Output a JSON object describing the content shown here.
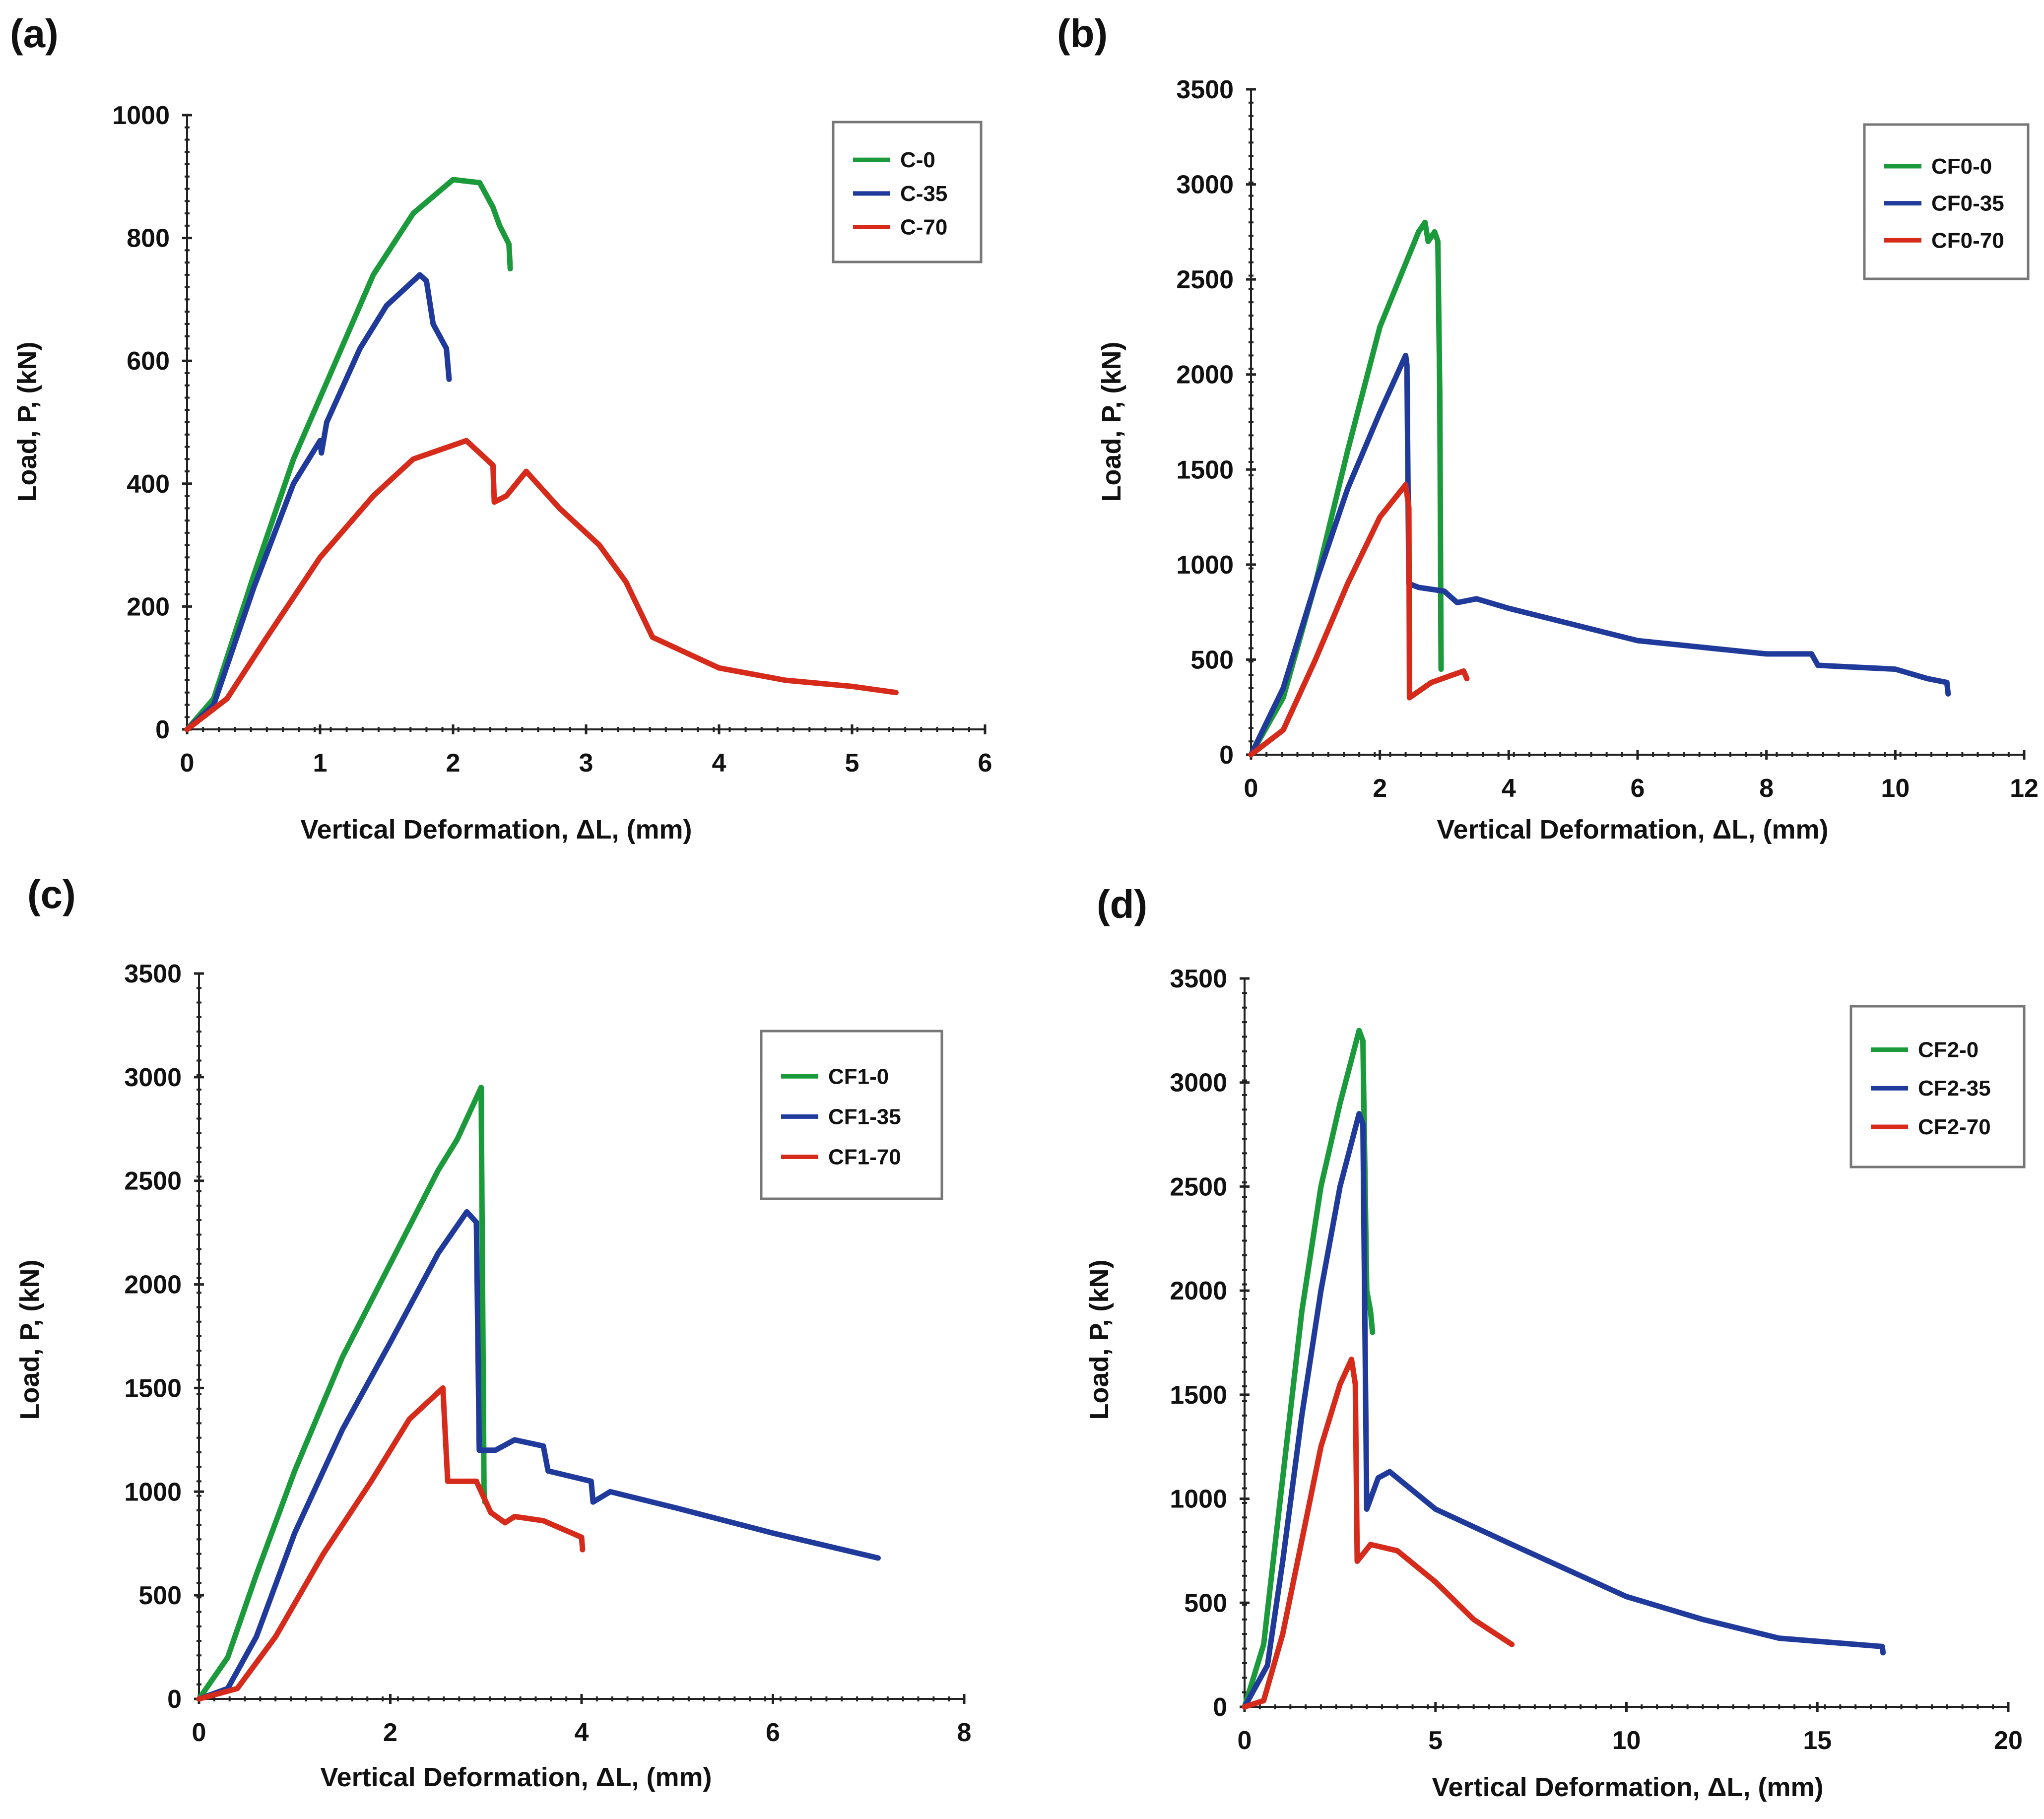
{
  "colors": {
    "green": "#1a9a3a",
    "blue": "#1f3a9a",
    "red": "#d62a1a",
    "axis": "#222222",
    "legend_border": "#777777"
  },
  "chart_data": [
    {
      "panel_label": "(a)",
      "type": "line",
      "xlabel": "Vertical Deformation, ΔL, (mm)",
      "ylabel": "Load, P, (kN)",
      "xlim": [
        0,
        6
      ],
      "ylim": [
        0,
        1000
      ],
      "xticks": [
        0,
        1,
        2,
        3,
        4,
        5,
        6
      ],
      "yticks": [
        0,
        200,
        400,
        600,
        800,
        1000
      ],
      "legend_position": "top-right",
      "grid": false,
      "series": [
        {
          "name": "C-0",
          "color": "green",
          "points": [
            [
              0,
              0
            ],
            [
              0.2,
              50
            ],
            [
              0.5,
              250
            ],
            [
              0.8,
              440
            ],
            [
              1.1,
              590
            ],
            [
              1.4,
              740
            ],
            [
              1.7,
              840
            ],
            [
              2.0,
              895
            ],
            [
              2.2,
              890
            ],
            [
              2.3,
              850
            ],
            [
              2.35,
              820
            ],
            [
              2.42,
              790
            ],
            [
              2.43,
              750
            ]
          ]
        },
        {
          "name": "C-35",
          "color": "blue",
          "points": [
            [
              0,
              0
            ],
            [
              0.2,
              40
            ],
            [
              0.5,
              230
            ],
            [
              0.8,
              400
            ],
            [
              1.0,
              470
            ],
            [
              1.01,
              450
            ],
            [
              1.05,
              500
            ],
            [
              1.3,
              620
            ],
            [
              1.5,
              690
            ],
            [
              1.75,
              740
            ],
            [
              1.8,
              730
            ],
            [
              1.85,
              660
            ],
            [
              1.95,
              620
            ],
            [
              1.97,
              570
            ]
          ]
        },
        {
          "name": "C-70",
          "color": "red",
          "points": [
            [
              0,
              0
            ],
            [
              0.3,
              50
            ],
            [
              0.6,
              150
            ],
            [
              1.0,
              280
            ],
            [
              1.4,
              380
            ],
            [
              1.7,
              440
            ],
            [
              2.1,
              470
            ],
            [
              2.3,
              430
            ],
            [
              2.31,
              370
            ],
            [
              2.4,
              380
            ],
            [
              2.55,
              420
            ],
            [
              2.8,
              360
            ],
            [
              3.1,
              300
            ],
            [
              3.3,
              240
            ],
            [
              3.5,
              150
            ],
            [
              4.0,
              100
            ],
            [
              4.5,
              80
            ],
            [
              5.0,
              70
            ],
            [
              5.33,
              60
            ]
          ]
        }
      ]
    },
    {
      "panel_label": "(b)",
      "type": "line",
      "xlabel": "Vertical Deformation, ΔL, (mm)",
      "ylabel": "Load, P, (kN)",
      "xlim": [
        0,
        12
      ],
      "ylim": [
        0,
        3500
      ],
      "xticks": [
        0,
        2,
        4,
        6,
        8,
        10,
        12
      ],
      "yticks": [
        0,
        500,
        1000,
        1500,
        2000,
        2500,
        3000,
        3500
      ],
      "legend_position": "top-right",
      "grid": false,
      "series": [
        {
          "name": "CF0-0",
          "color": "green",
          "points": [
            [
              0,
              0
            ],
            [
              0.5,
              300
            ],
            [
              1,
              900
            ],
            [
              1.5,
              1600
            ],
            [
              2.0,
              2250
            ],
            [
              2.3,
              2500
            ],
            [
              2.6,
              2750
            ],
            [
              2.7,
              2800
            ],
            [
              2.75,
              2700
            ],
            [
              2.85,
              2750
            ],
            [
              2.9,
              2700
            ],
            [
              2.93,
              1900
            ],
            [
              2.95,
              450
            ]
          ]
        },
        {
          "name": "CF0-35",
          "color": "blue",
          "points": [
            [
              0,
              0
            ],
            [
              0.5,
              350
            ],
            [
              1,
              900
            ],
            [
              1.5,
              1400
            ],
            [
              2.0,
              1800
            ],
            [
              2.4,
              2100
            ],
            [
              2.42,
              2050
            ],
            [
              2.45,
              900
            ],
            [
              2.6,
              880
            ],
            [
              3.0,
              860
            ],
            [
              3.2,
              800
            ],
            [
              3.5,
              820
            ],
            [
              4,
              770
            ],
            [
              6,
              600
            ],
            [
              8,
              530
            ],
            [
              8.7,
              530
            ],
            [
              8.8,
              470
            ],
            [
              10,
              450
            ],
            [
              10.5,
              400
            ],
            [
              10.8,
              380
            ],
            [
              10.82,
              320
            ]
          ]
        },
        {
          "name": "CF0-70",
          "color": "red",
          "points": [
            [
              0,
              0
            ],
            [
              0.5,
              130
            ],
            [
              1,
              500
            ],
            [
              1.5,
              900
            ],
            [
              2.0,
              1250
            ],
            [
              2.4,
              1420
            ],
            [
              2.45,
              1300
            ],
            [
              2.46,
              300
            ],
            [
              2.8,
              380
            ],
            [
              3.3,
              440
            ],
            [
              3.35,
              400
            ]
          ]
        }
      ]
    },
    {
      "panel_label": "(c)",
      "type": "line",
      "xlabel": "Vertical Deformation, ΔL, (mm)",
      "ylabel": "Load, P, (kN)",
      "xlim": [
        0,
        8
      ],
      "ylim": [
        0,
        3500
      ],
      "xticks": [
        0,
        2,
        4,
        6,
        8
      ],
      "yticks": [
        0,
        500,
        1000,
        1500,
        2000,
        2500,
        3000,
        3500
      ],
      "legend_position": "top-right",
      "grid": false,
      "series": [
        {
          "name": "CF1-0",
          "color": "green",
          "points": [
            [
              0,
              0
            ],
            [
              0.3,
              200
            ],
            [
              0.6,
              600
            ],
            [
              1.0,
              1100
            ],
            [
              1.5,
              1650
            ],
            [
              2.0,
              2100
            ],
            [
              2.5,
              2550
            ],
            [
              2.7,
              2700
            ],
            [
              2.95,
              2950
            ],
            [
              2.98,
              1000
            ],
            [
              2.99,
              950
            ]
          ]
        },
        {
          "name": "CF1-35",
          "color": "blue",
          "points": [
            [
              0,
              0
            ],
            [
              0.3,
              50
            ],
            [
              0.6,
              300
            ],
            [
              1.0,
              800
            ],
            [
              1.5,
              1300
            ],
            [
              2.0,
              1720
            ],
            [
              2.5,
              2150
            ],
            [
              2.8,
              2350
            ],
            [
              2.9,
              2300
            ],
            [
              2.93,
              1200
            ],
            [
              3.1,
              1200
            ],
            [
              3.3,
              1250
            ],
            [
              3.6,
              1220
            ],
            [
              3.65,
              1100
            ],
            [
              4.1,
              1050
            ],
            [
              4.12,
              950
            ],
            [
              4.3,
              1000
            ],
            [
              5,
              920
            ],
            [
              6,
              800
            ],
            [
              7.1,
              680
            ]
          ]
        },
        {
          "name": "CF1-70",
          "color": "red",
          "points": [
            [
              0,
              0
            ],
            [
              0.4,
              50
            ],
            [
              0.8,
              300
            ],
            [
              1.3,
              700
            ],
            [
              1.8,
              1050
            ],
            [
              2.2,
              1350
            ],
            [
              2.55,
              1500
            ],
            [
              2.6,
              1050
            ],
            [
              2.9,
              1050
            ],
            [
              3.05,
              900
            ],
            [
              3.2,
              850
            ],
            [
              3.3,
              880
            ],
            [
              3.6,
              860
            ],
            [
              4.0,
              780
            ],
            [
              4.01,
              720
            ]
          ]
        }
      ]
    },
    {
      "panel_label": "(d)",
      "type": "line",
      "xlabel": "Vertical Deformation, ΔL, (mm)",
      "ylabel": "Load, P, (kN)",
      "xlim": [
        0,
        20
      ],
      "ylim": [
        0,
        3500
      ],
      "xticks": [
        0,
        5,
        10,
        15,
        20
      ],
      "yticks": [
        0,
        500,
        1000,
        1500,
        2000,
        2500,
        3000,
        3500
      ],
      "legend_position": "top-right",
      "grid": false,
      "series": [
        {
          "name": "CF2-0",
          "color": "green",
          "points": [
            [
              0,
              0
            ],
            [
              0.5,
              300
            ],
            [
              1,
              1100
            ],
            [
              1.5,
              1900
            ],
            [
              2,
              2500
            ],
            [
              2.5,
              2900
            ],
            [
              3,
              3250
            ],
            [
              3.1,
              3200
            ],
            [
              3.2,
              2000
            ],
            [
              3.3,
              1900
            ],
            [
              3.35,
              1800
            ]
          ]
        },
        {
          "name": "CF2-35",
          "color": "blue",
          "points": [
            [
              0,
              0
            ],
            [
              0.6,
              200
            ],
            [
              1,
              700
            ],
            [
              1.5,
              1400
            ],
            [
              2,
              2000
            ],
            [
              2.5,
              2500
            ],
            [
              3,
              2850
            ],
            [
              3.1,
              2800
            ],
            [
              3.2,
              950
            ],
            [
              3.5,
              1100
            ],
            [
              3.8,
              1130
            ],
            [
              5,
              950
            ],
            [
              7,
              780
            ],
            [
              10,
              530
            ],
            [
              12,
              420
            ],
            [
              14,
              330
            ],
            [
              16.7,
              290
            ],
            [
              16.72,
              260
            ]
          ]
        },
        {
          "name": "CF2-70",
          "color": "red",
          "points": [
            [
              0,
              0
            ],
            [
              0.5,
              30
            ],
            [
              1,
              350
            ],
            [
              1.5,
              800
            ],
            [
              2,
              1250
            ],
            [
              2.5,
              1550
            ],
            [
              2.8,
              1670
            ],
            [
              2.9,
              1550
            ],
            [
              2.95,
              700
            ],
            [
              3.3,
              780
            ],
            [
              4,
              750
            ],
            [
              5,
              600
            ],
            [
              6,
              420
            ],
            [
              7,
              300
            ]
          ]
        }
      ]
    }
  ]
}
